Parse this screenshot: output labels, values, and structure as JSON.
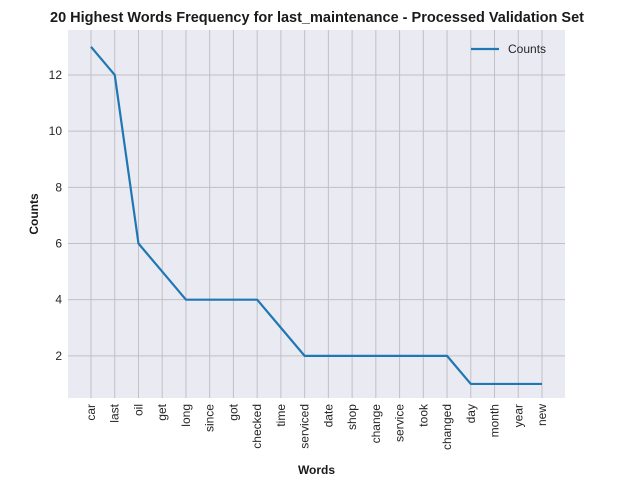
{
  "chart_data": {
    "type": "line",
    "title": "20 Highest Words Frequency for last_maintenance - Processed Validation Set",
    "xlabel": "Words",
    "ylabel": "Counts",
    "categories": [
      "car",
      "last",
      "oil",
      "get",
      "long",
      "since",
      "got",
      "checked",
      "time",
      "serviced",
      "date",
      "shop",
      "change",
      "service",
      "took",
      "changed",
      "day",
      "month",
      "year",
      "new"
    ],
    "series": [
      {
        "name": "Counts",
        "values": [
          13,
          12,
          6,
          5,
          4,
          4,
          4,
          4,
          3,
          2,
          2,
          2,
          2,
          2,
          2,
          2,
          1,
          1,
          1,
          1
        ],
        "color": "#1f77b4"
      }
    ],
    "ylim": [
      0.5,
      13.6
    ],
    "yticks": [
      2,
      4,
      6,
      8,
      10,
      12
    ],
    "grid": true,
    "legend": "top-right",
    "colors": {
      "plot_bg": "#eaeaf2",
      "grid": "#c0c0c4",
      "page_bg": "#ffffff"
    }
  }
}
